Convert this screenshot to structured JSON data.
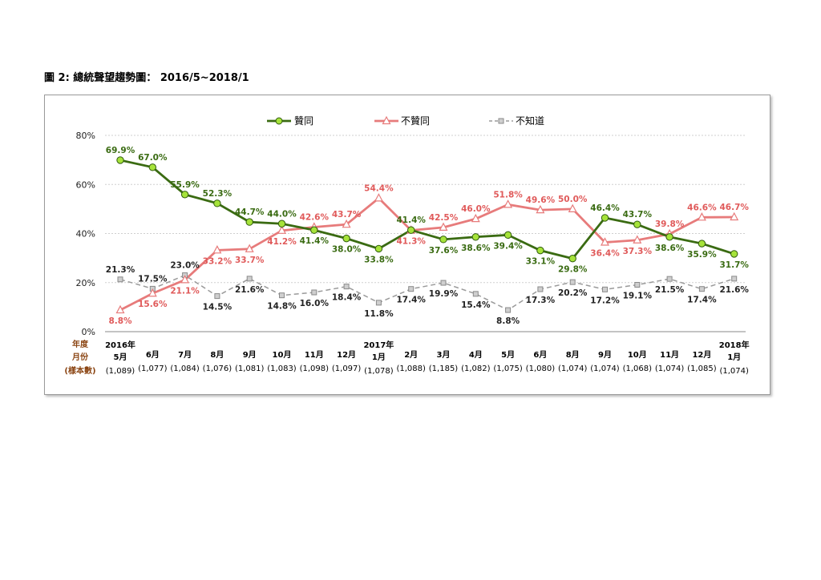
{
  "figure_title": "圖 2:  總統聲望趨勢圖：  2016/5~2018/1",
  "row_headers": {
    "year": "年度",
    "month": "月份",
    "sample": "(樣本數)"
  },
  "chart_data": {
    "type": "line",
    "ylim": [
      0,
      80
    ],
    "y_ticks": [
      "0%",
      "20%",
      "40%",
      "60%",
      "80%"
    ],
    "legend_position": "top-center",
    "grid": "horizontal dashed",
    "x": [
      {
        "year": "2016年",
        "month": "5月",
        "n": "(1,089)"
      },
      {
        "year": "",
        "month": "6月",
        "n": "(1,077)"
      },
      {
        "year": "",
        "month": "7月",
        "n": "(1,084)"
      },
      {
        "year": "",
        "month": "8月",
        "n": "(1,076)"
      },
      {
        "year": "",
        "month": "9月",
        "n": "(1,081)"
      },
      {
        "year": "",
        "month": "10月",
        "n": "(1,083)"
      },
      {
        "year": "",
        "month": "11月",
        "n": "(1,098)"
      },
      {
        "year": "",
        "month": "12月",
        "n": "(1,097)"
      },
      {
        "year": "2017年",
        "month": "1月",
        "n": "(1,078)"
      },
      {
        "year": "",
        "month": "2月",
        "n": "(1,088)"
      },
      {
        "year": "",
        "month": "3月",
        "n": "(1,185)"
      },
      {
        "year": "",
        "month": "4月",
        "n": "(1,082)"
      },
      {
        "year": "",
        "month": "5月",
        "n": "(1,075)"
      },
      {
        "year": "",
        "month": "6月",
        "n": "(1,080)"
      },
      {
        "year": "",
        "month": "8月",
        "n": "(1,074)"
      },
      {
        "year": "",
        "month": "9月",
        "n": "(1,074)"
      },
      {
        "year": "",
        "month": "10月",
        "n": "(1,068)"
      },
      {
        "year": "",
        "month": "11月",
        "n": "(1,074)"
      },
      {
        "year": "",
        "month": "12月",
        "n": "(1,085)"
      },
      {
        "year": "2018年",
        "month": "1月",
        "n": "(1,074)"
      }
    ],
    "series": [
      {
        "name": "贊同",
        "color": "#3a6b12",
        "marker": "circle",
        "marker_fill": "#a6e33a",
        "values": [
          69.9,
          67.0,
          55.9,
          52.3,
          44.7,
          44.0,
          41.4,
          38.0,
          33.8,
          41.4,
          37.6,
          38.6,
          39.4,
          33.1,
          29.8,
          46.4,
          43.7,
          38.6,
          35.9,
          31.7
        ],
        "labels": [
          "69.9%",
          "67.0%",
          "55.9%",
          "52.3%",
          "44.7%",
          "44.0%",
          "41.4%",
          "38.0%",
          "33.8%",
          "41.4%",
          "37.6%",
          "38.6%",
          "39.4%",
          "33.1%",
          "29.8%",
          "46.4%",
          "43.7%",
          "38.6%",
          "35.9%",
          "31.7%"
        ]
      },
      {
        "name": "不贊同",
        "color": "#e77b7b",
        "marker": "triangle",
        "marker_fill": "#ffffff",
        "values": [
          8.8,
          15.6,
          21.1,
          33.2,
          33.7,
          41.2,
          42.6,
          43.7,
          54.4,
          41.3,
          42.5,
          46.0,
          51.8,
          49.6,
          50.0,
          36.4,
          37.3,
          39.8,
          46.6,
          46.7
        ],
        "labels": [
          "8.8%",
          "15.6%",
          "21.1%",
          "33.2%",
          "33.7%",
          "41.2%",
          "42.6%",
          "43.7%",
          "54.4%",
          "41.3%",
          "42.5%",
          "46.0%",
          "51.8%",
          "49.6%",
          "50.0%",
          "36.4%",
          "37.3%",
          "39.8%",
          "46.6%",
          "46.7%"
        ]
      },
      {
        "name": "不知道",
        "color": "#9a9a9a",
        "marker": "square",
        "marker_fill": "#cfcfcf",
        "values": [
          21.3,
          17.5,
          23.0,
          14.5,
          21.6,
          14.8,
          16.0,
          18.4,
          11.8,
          17.4,
          19.9,
          15.4,
          8.8,
          17.3,
          20.2,
          17.2,
          19.1,
          21.5,
          17.4,
          21.6
        ],
        "labels": [
          "21.3%",
          "17.5%",
          "23.0%",
          "14.5%",
          "21.6%",
          "14.8%",
          "16.0%",
          "18.4%",
          "11.8%",
          "17.4%",
          "19.9%",
          "15.4%",
          "8.8%",
          "17.3%",
          "20.2%",
          "17.2%",
          "19.1%",
          "21.5%",
          "17.4%",
          "21.6%"
        ]
      }
    ]
  }
}
